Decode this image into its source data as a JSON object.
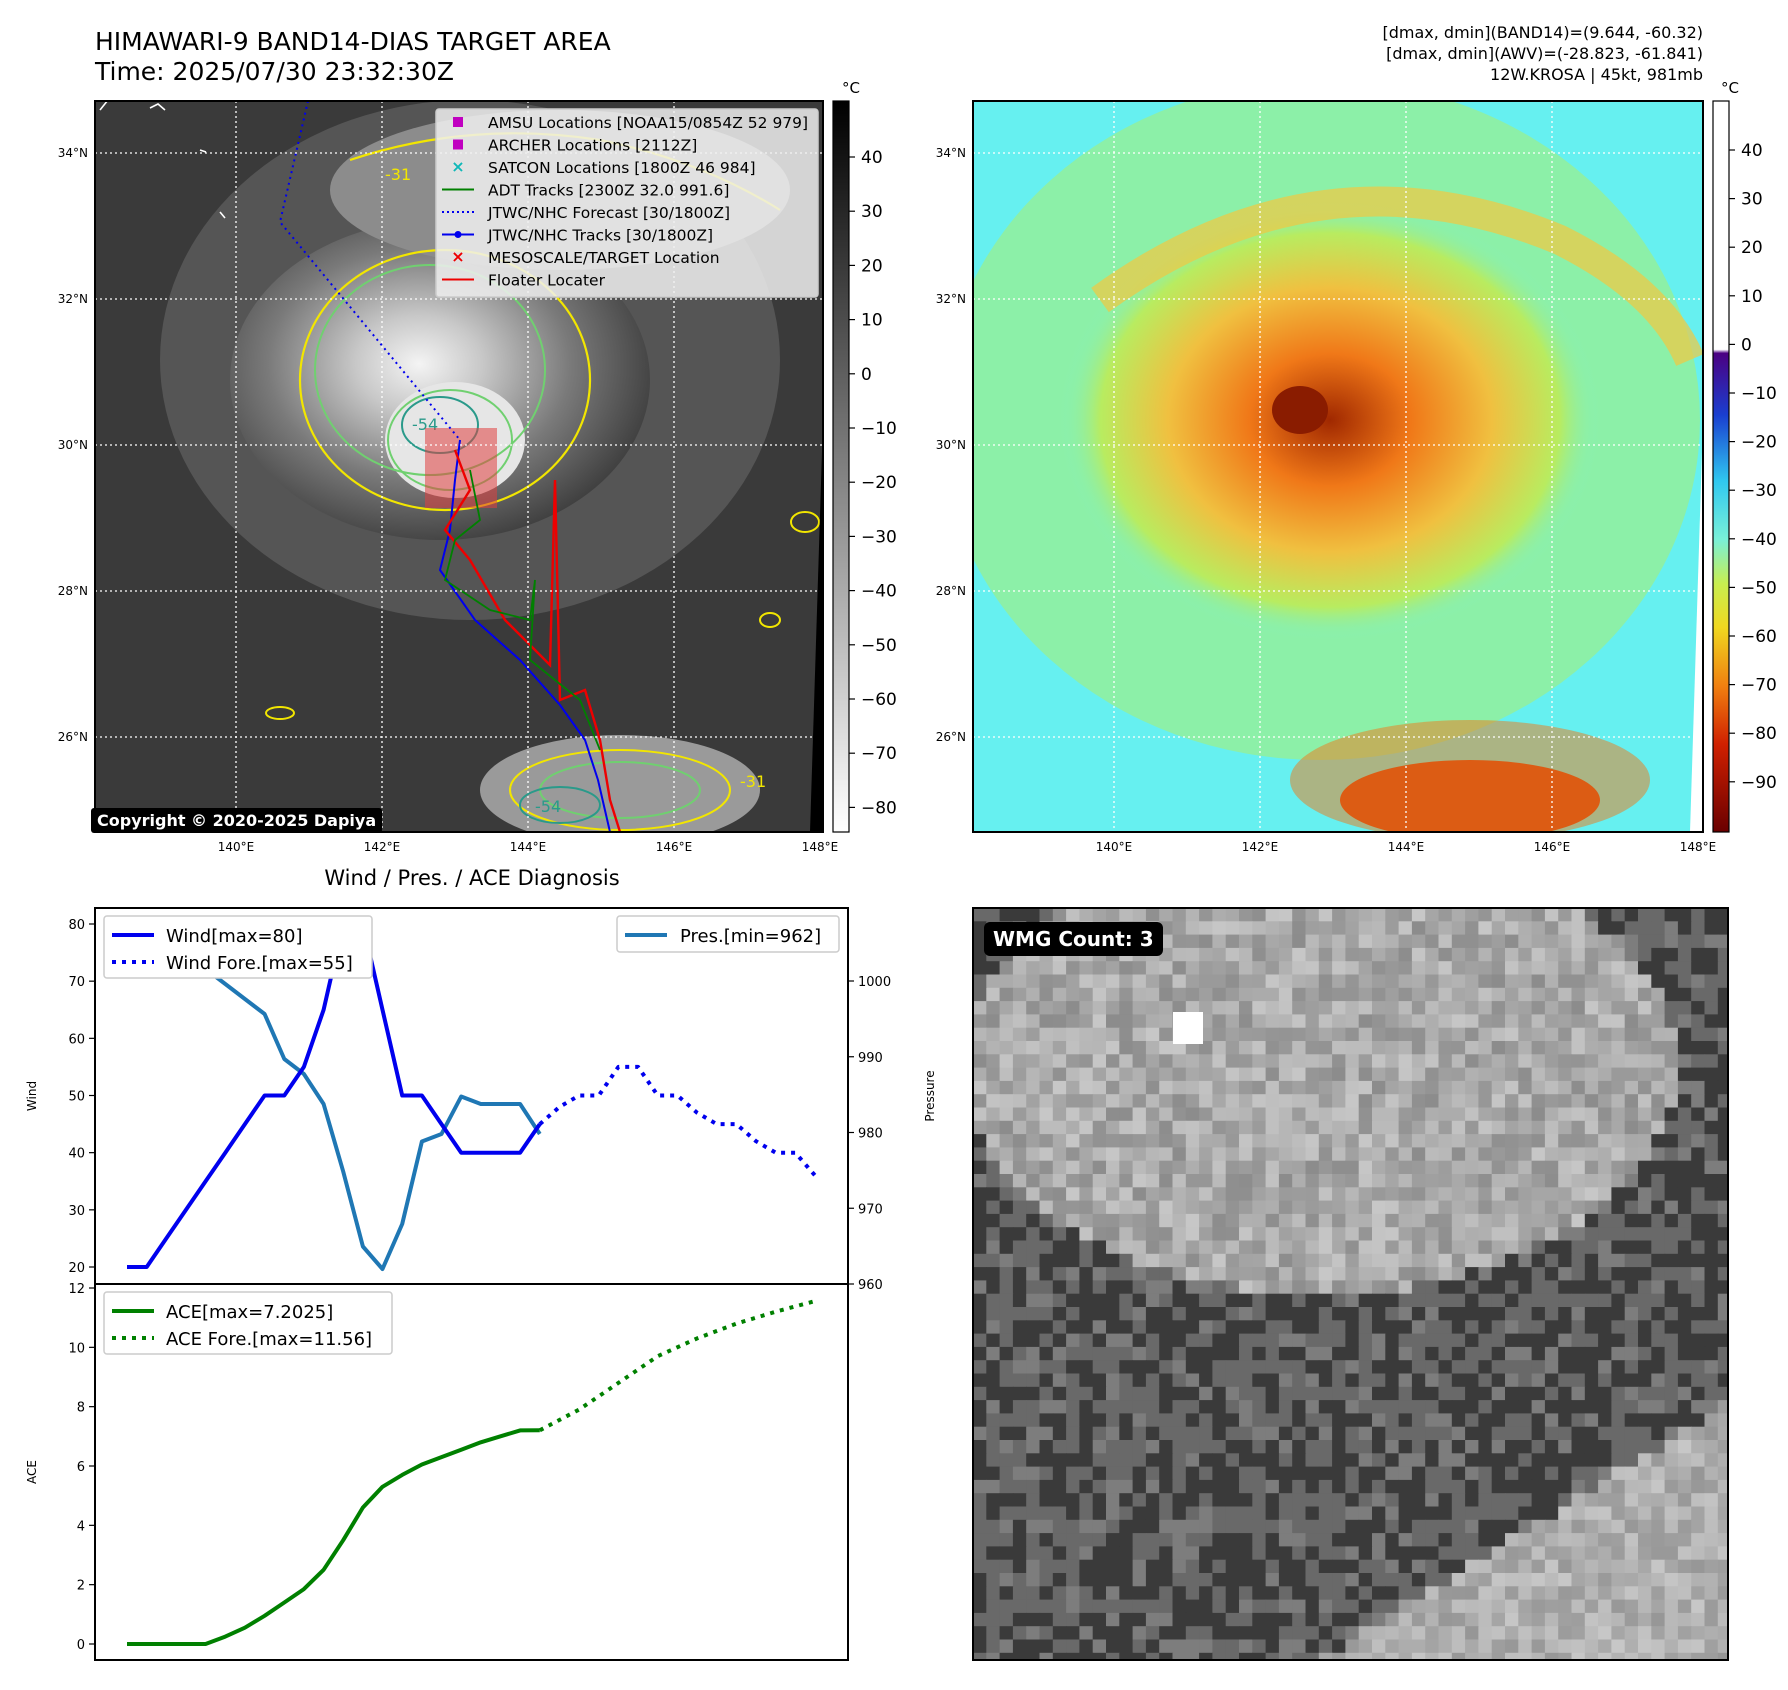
{
  "header": {
    "title_line1": "HIMAWARI-9 BAND14-DIAS TARGET AREA",
    "title_line2": "Time: 2025/07/30 23:32:30Z",
    "info_line1": "[dmax, dmin](BAND14)=(9.644, -60.32)",
    "info_line2": "[dmax, dmin](AWV)=(-28.823, -61.841)",
    "info_line3": "12W.KROSA | 45kt, 981mb"
  },
  "map": {
    "lat_labels": [
      "34°N",
      "32°N",
      "30°N",
      "28°N",
      "26°N"
    ],
    "lon_labels": [
      "140°E",
      "142°E",
      "144°E",
      "146°E",
      "148°E"
    ],
    "copyright": "Copyright © 2020-2025 Dapiya",
    "contour_labels": [
      "-31",
      "-54"
    ],
    "legend": [
      {
        "label": "AMSU Locations [NOAA15/0854Z 52 979]",
        "symbol": "square",
        "color": "#c000c0"
      },
      {
        "label": "ARCHER Locations [2112Z]",
        "symbol": "square",
        "color": "#c000c0"
      },
      {
        "label": "SATCON Locations [1800Z 46 984]",
        "symbol": "x",
        "color": "#10b8b8"
      },
      {
        "label": "ADT Tracks [2300Z 32.0 991.6]",
        "symbol": "line",
        "color": "#008000"
      },
      {
        "label": "JTWC/NHC Forecast [30/1800Z]",
        "symbol": "dotted",
        "color": "#0000ee"
      },
      {
        "label": "JTWC/NHC Tracks [30/1800Z]",
        "symbol": "line-dot",
        "color": "#0000ee"
      },
      {
        "label": "MESOSCALE/TARGET Location",
        "symbol": "x",
        "color": "#ee0000"
      },
      {
        "label": "Floater Locater",
        "symbol": "line",
        "color": "#ee0000"
      }
    ]
  },
  "colorbar_ir": {
    "unit": "°C",
    "ticks": [
      "40",
      "30",
      "20",
      "10",
      "0",
      "−10",
      "−20",
      "−30",
      "−40",
      "−50",
      "−60",
      "−70",
      "−80"
    ]
  },
  "colorbar_wv": {
    "unit": "°C",
    "ticks": [
      "40",
      "30",
      "20",
      "10",
      "0",
      "−10",
      "−20",
      "−30",
      "−40",
      "−50",
      "−60",
      "−70",
      "−80",
      "−90"
    ]
  },
  "diagnosis": {
    "title": "Wind / Pres. / ACE Diagnosis",
    "wind_ylabel": "Wind",
    "pressure_ylabel": "Pressure",
    "ace_ylabel": "ACE",
    "wind_ticks": [
      "80",
      "70",
      "60",
      "50",
      "40",
      "30",
      "20"
    ],
    "pressure_ticks": [
      "1000",
      "990",
      "980",
      "970",
      "960"
    ],
    "ace_ticks": [
      "12",
      "10",
      "8",
      "6",
      "4",
      "2",
      "0"
    ],
    "legend_wind": "Wind[max=80]",
    "legend_wind_fore": "Wind Fore.[max=55]",
    "legend_pres": "Pres.[min=962]",
    "legend_ace": "ACE[max=7.2025]",
    "legend_ace_fore": "ACE Fore.[max=11.56]"
  },
  "wmg": {
    "label": "WMG Count: 3"
  },
  "colors": {
    "wind": "#0000ee",
    "pressure": "#1f77b4",
    "ace": "#008000"
  },
  "chart_data": [
    {
      "type": "line",
      "title": "Wind / Pres. / ACE Diagnosis",
      "ylabel": "Wind",
      "ylim": [
        20,
        80
      ],
      "series": [
        {
          "name": "Wind[max=80]",
          "x": [
            0,
            1,
            2,
            3,
            4,
            5,
            6,
            7,
            8,
            9,
            10,
            11,
            12,
            13,
            14,
            15,
            16,
            17,
            18,
            19,
            20,
            21
          ],
          "values": [
            20,
            20,
            25,
            30,
            35,
            40,
            45,
            50,
            50,
            55,
            65,
            80,
            80,
            65,
            50,
            50,
            45,
            40,
            40,
            40,
            40,
            45
          ]
        },
        {
          "name": "Wind Fore.[max=55]",
          "x": [
            21,
            22,
            23,
            24,
            25,
            26,
            27,
            28,
            29,
            30,
            31,
            32,
            33,
            34,
            35
          ],
          "values": [
            45,
            48,
            50,
            50,
            55,
            55,
            50,
            50,
            47,
            45,
            45,
            42,
            40,
            40,
            36
          ]
        }
      ]
    },
    {
      "type": "line",
      "ylabel": "Pressure",
      "ylim": [
        960,
        1008
      ],
      "series": [
        {
          "name": "Pres.[min=962]",
          "x": [
            0,
            1,
            2,
            3,
            4,
            5,
            6,
            7,
            8,
            9,
            10,
            11,
            12,
            13,
            14,
            15,
            16,
            17,
            18,
            19,
            20,
            21
          ],
          "values": [
            1008,
            1008,
            1006,
            1004,
            1002,
            1000,
            998,
            996,
            990,
            988,
            984,
            975,
            965,
            962,
            968,
            979,
            980,
            985,
            984,
            984,
            984,
            980
          ]
        }
      ]
    },
    {
      "type": "line",
      "ylabel": "ACE",
      "ylim": [
        0,
        12
      ],
      "series": [
        {
          "name": "ACE[max=7.2025]",
          "x": [
            0,
            2,
            4,
            5,
            6,
            7,
            8,
            9,
            10,
            11,
            12,
            13,
            14,
            15,
            16,
            17,
            18,
            19,
            20,
            21
          ],
          "values": [
            0,
            0,
            0,
            0.25,
            0.55,
            0.95,
            1.4,
            1.85,
            2.5,
            3.5,
            4.6,
            5.3,
            5.7,
            6.05,
            6.3,
            6.55,
            6.8,
            7.0,
            7.2,
            7.2025
          ]
        },
        {
          "name": "ACE Fore.[max=11.56]",
          "x": [
            21,
            23,
            25,
            27,
            29,
            31,
            33,
            35
          ],
          "values": [
            7.2025,
            7.9,
            8.8,
            9.7,
            10.3,
            10.8,
            11.2,
            11.56
          ]
        }
      ]
    }
  ]
}
